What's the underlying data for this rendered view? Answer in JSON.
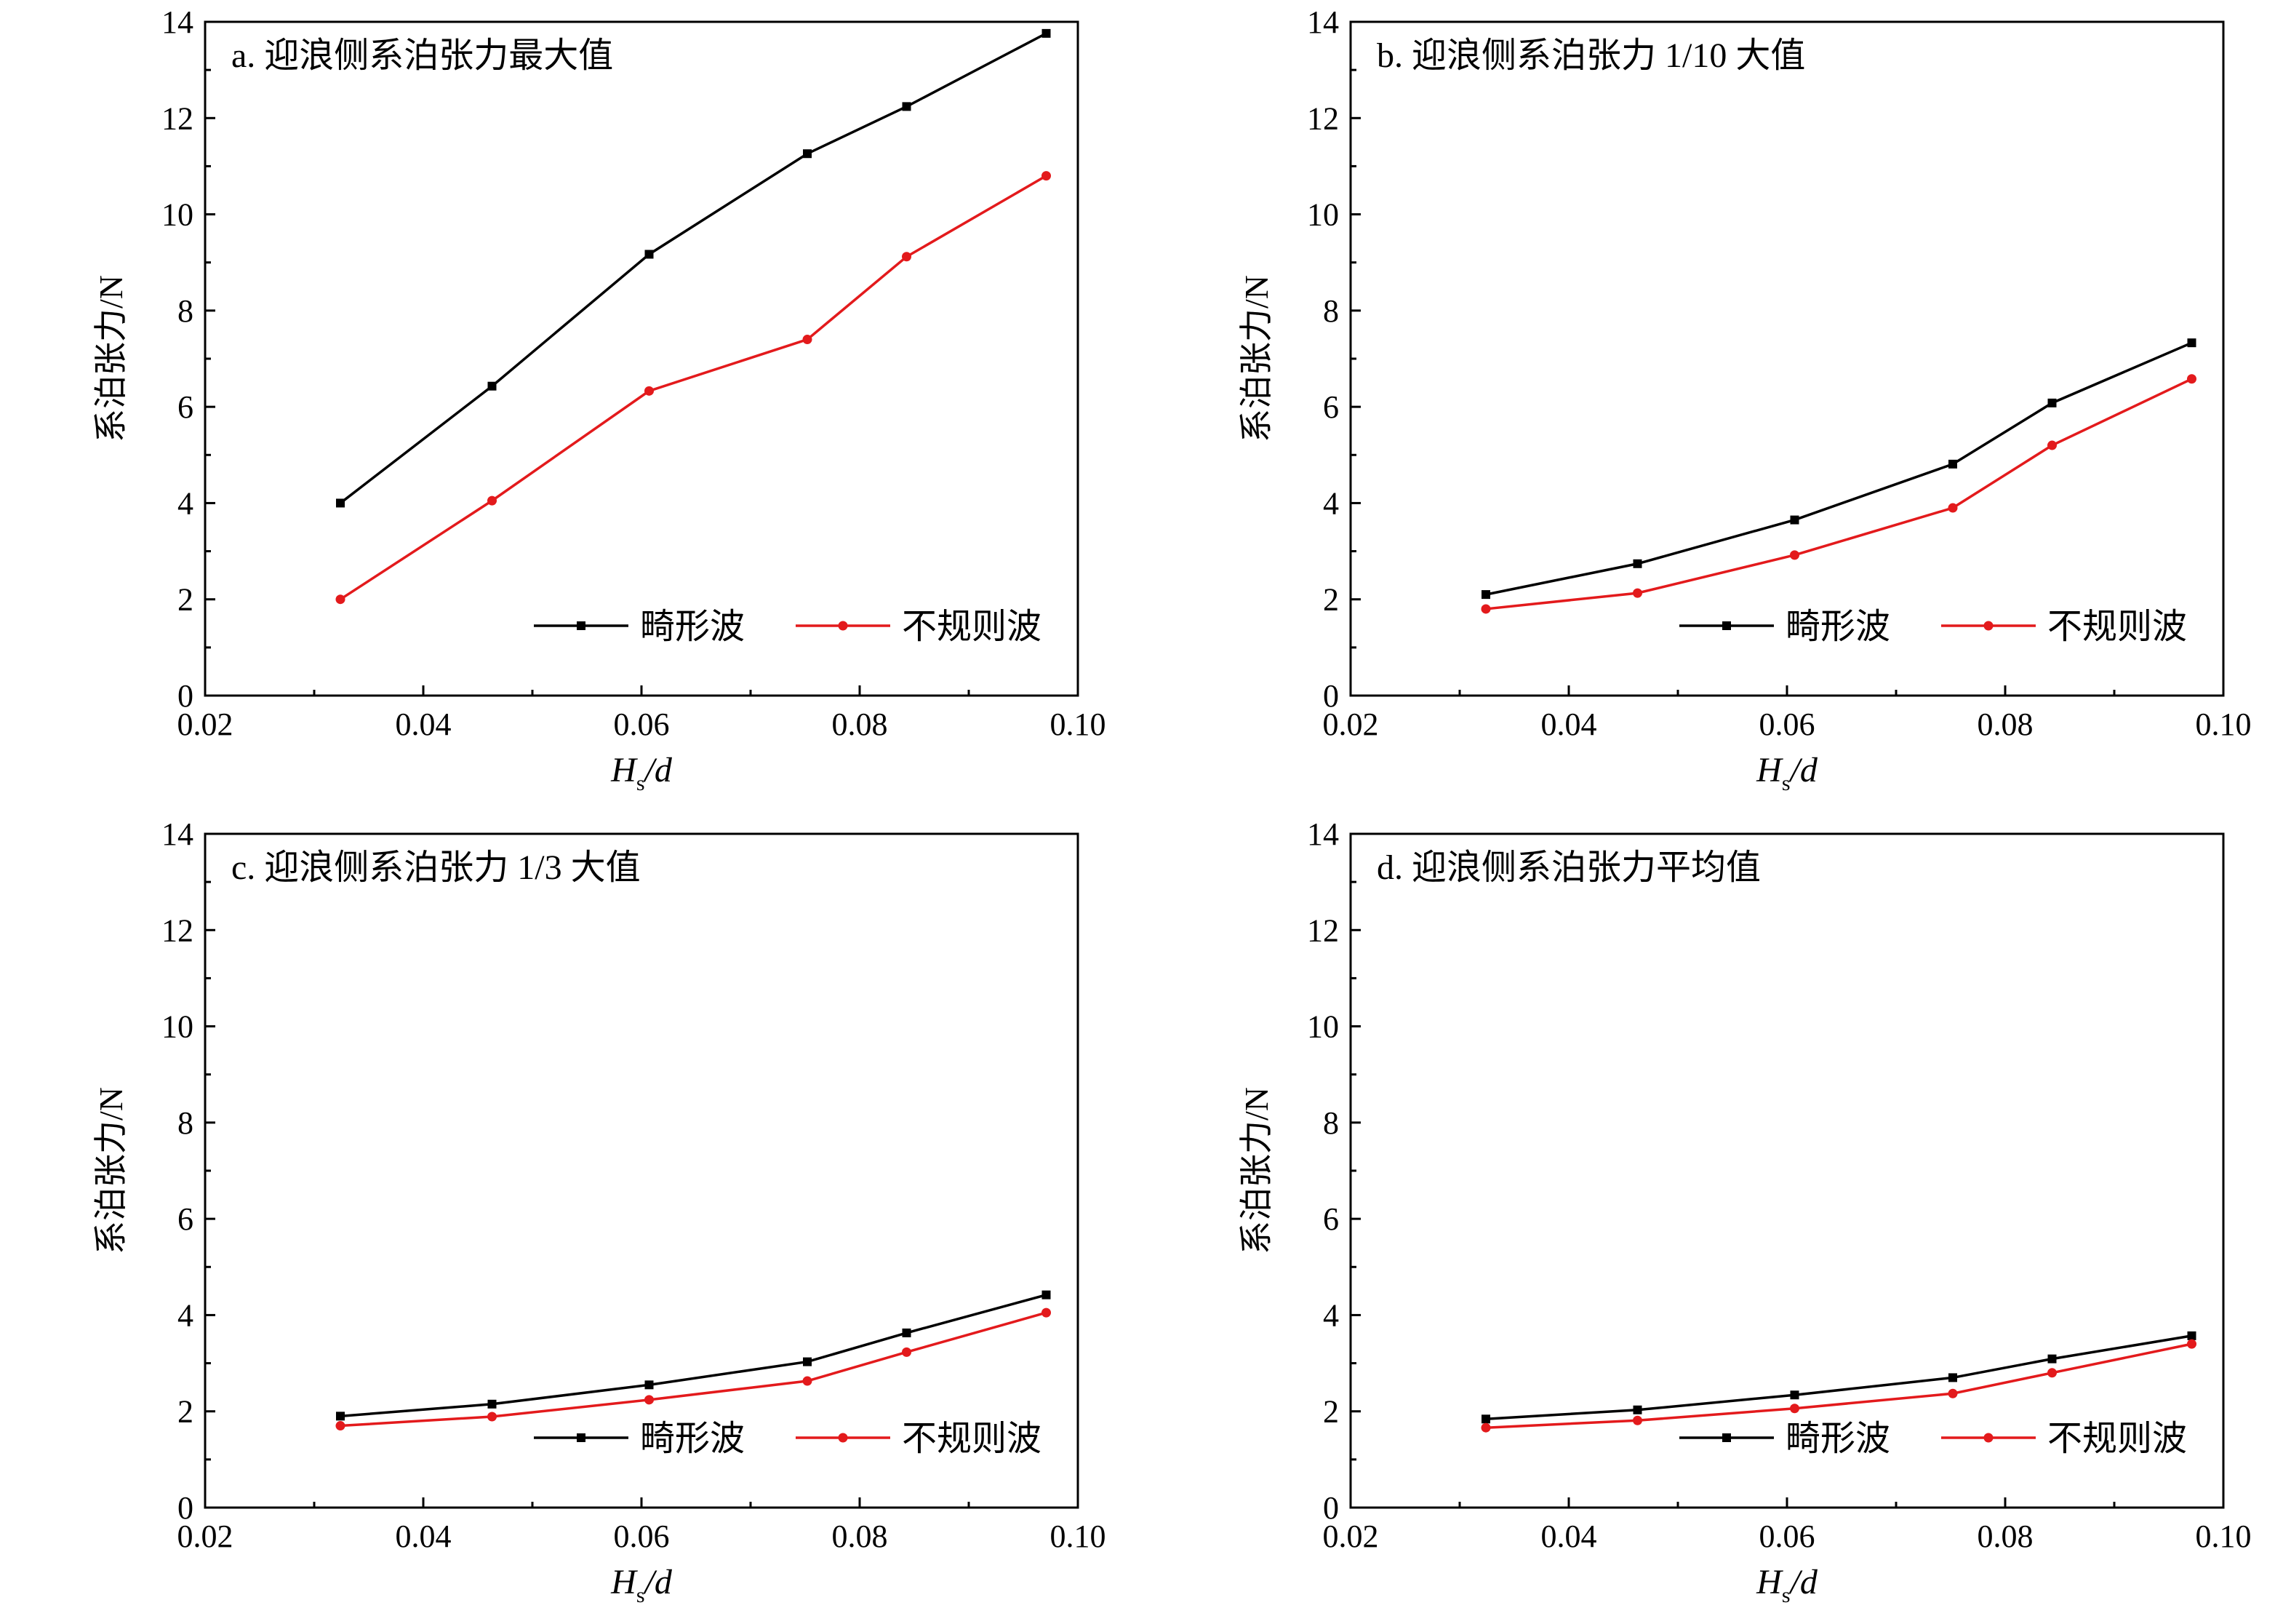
{
  "figure": {
    "ylabel": "系泊张力/N",
    "xlabel_main": "H",
    "xlabel_sub": "s",
    "xlabel_tail": "/d",
    "legend": {
      "freak": "畸形波",
      "irregular": "不规则波"
    },
    "colors": {
      "freak": "#000000",
      "irregular": "#e31a1c",
      "axis": "#000000"
    }
  },
  "chart_data": [
    {
      "type": "line",
      "title": "a. 迎浪侧系泊张力最大值",
      "xlabel": "Hs/d",
      "ylabel": "系泊张力/N",
      "xlim": [
        0.02,
        0.1
      ],
      "ylim": [
        0,
        14
      ],
      "xticks": [
        "0.02",
        "0.04",
        "0.06",
        "0.08",
        "0.10"
      ],
      "yticks": [
        "0",
        "2",
        "4",
        "6",
        "8",
        "10",
        "12",
        "14"
      ],
      "grid": false,
      "legend_position": "bottom-right",
      "x": [
        0.0324,
        0.0463,
        0.0607,
        0.0752,
        0.0843,
        0.0971
      ],
      "series": [
        {
          "name": "畸形波",
          "marker": "square",
          "values": [
            4.0,
            6.43,
            9.17,
            11.26,
            12.24,
            13.76
          ]
        },
        {
          "name": "不规则波",
          "marker": "circle",
          "values": [
            2.0,
            4.05,
            6.33,
            7.4,
            9.12,
            10.8
          ]
        }
      ]
    },
    {
      "type": "line",
      "title": "b. 迎浪侧系泊张力 1/10 大值",
      "xlabel": "Hs/d",
      "ylabel": "系泊张力/N",
      "xlim": [
        0.02,
        0.1
      ],
      "ylim": [
        0,
        14
      ],
      "xticks": [
        "0.02",
        "0.04",
        "0.06",
        "0.08",
        "0.10"
      ],
      "yticks": [
        "0",
        "2",
        "4",
        "6",
        "8",
        "10",
        "12",
        "14"
      ],
      "grid": false,
      "legend_position": "bottom-right",
      "x": [
        0.0324,
        0.0463,
        0.0607,
        0.0752,
        0.0843,
        0.0971
      ],
      "series": [
        {
          "name": "畸形波",
          "marker": "square",
          "values": [
            2.1,
            2.74,
            3.65,
            4.81,
            6.08,
            7.33
          ]
        },
        {
          "name": "不规则波",
          "marker": "circle",
          "values": [
            1.8,
            2.13,
            2.92,
            3.9,
            5.2,
            6.58
          ]
        }
      ]
    },
    {
      "type": "line",
      "title": "c. 迎浪侧系泊张力 1/3 大值",
      "xlabel": "Hs/d",
      "ylabel": "系泊张力/N",
      "xlim": [
        0.02,
        0.1
      ],
      "ylim": [
        0,
        14
      ],
      "xticks": [
        "0.02",
        "0.04",
        "0.06",
        "0.08",
        "0.10"
      ],
      "yticks": [
        "0",
        "2",
        "4",
        "6",
        "8",
        "10",
        "12",
        "14"
      ],
      "grid": false,
      "legend_position": "bottom-right",
      "x": [
        0.0324,
        0.0463,
        0.0607,
        0.0752,
        0.0843,
        0.0971
      ],
      "series": [
        {
          "name": "畸形波",
          "marker": "square",
          "values": [
            1.9,
            2.15,
            2.55,
            3.03,
            3.63,
            4.42
          ]
        },
        {
          "name": "不规则波",
          "marker": "circle",
          "values": [
            1.7,
            1.89,
            2.24,
            2.63,
            3.23,
            4.05
          ]
        }
      ]
    },
    {
      "type": "line",
      "title": "d. 迎浪侧系泊张力平均值",
      "xlabel": "Hs/d",
      "ylabel": "系泊张力/N",
      "xlim": [
        0.02,
        0.1
      ],
      "ylim": [
        0,
        14
      ],
      "xticks": [
        "0.02",
        "0.04",
        "0.06",
        "0.08",
        "0.10"
      ],
      "yticks": [
        "0",
        "2",
        "4",
        "6",
        "8",
        "10",
        "12",
        "14"
      ],
      "grid": false,
      "legend_position": "bottom-right",
      "x": [
        0.0324,
        0.0463,
        0.0607,
        0.0752,
        0.0843,
        0.0971
      ],
      "series": [
        {
          "name": "畸形波",
          "marker": "square",
          "values": [
            1.84,
            2.03,
            2.34,
            2.7,
            3.09,
            3.57
          ]
        },
        {
          "name": "不规则波",
          "marker": "circle",
          "values": [
            1.66,
            1.81,
            2.06,
            2.37,
            2.8,
            3.4
          ]
        }
      ]
    }
  ]
}
